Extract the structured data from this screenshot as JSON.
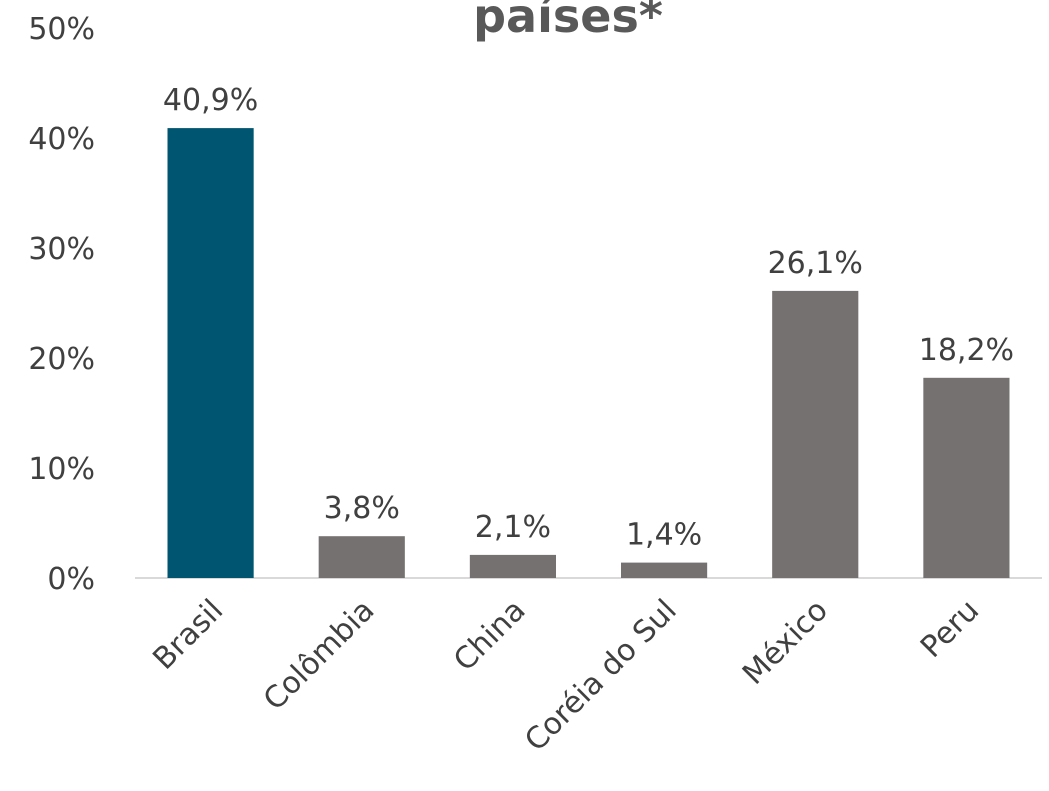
{
  "chart_data": {
    "type": "bar",
    "title": "países*",
    "categories": [
      "Brasil",
      "Colômbia",
      "China",
      "Coréia do Sul",
      "México",
      "Peru"
    ],
    "values": [
      40.9,
      3.8,
      2.1,
      1.4,
      26.1,
      18.2
    ],
    "data_labels": [
      "40,9%",
      "3,8%",
      "2,1%",
      "1,4%",
      "26,1%",
      "18,2%"
    ],
    "ylim": [
      0,
      50
    ],
    "yticks": [
      0,
      10,
      20,
      30,
      40,
      50
    ],
    "ytick_labels": [
      "0%",
      "10%",
      "20%",
      "30%",
      "40%",
      "50%"
    ],
    "xlabel": "",
    "ylabel": "",
    "grid": false,
    "colors": {
      "highlight": "#005670",
      "default": "#767171"
    },
    "highlight_index": 0
  }
}
